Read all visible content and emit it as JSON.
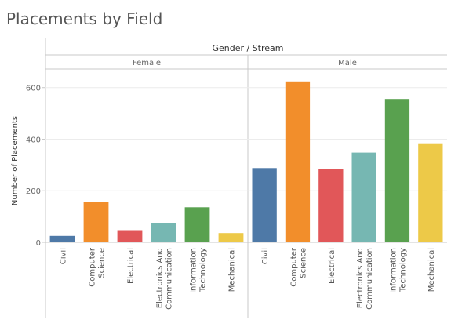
{
  "page": {
    "title": "Placements by Field"
  },
  "chart_data": {
    "type": "bar",
    "title": "Placements by Field",
    "column_header": "Gender / Stream",
    "ylabel": "Number of Placements",
    "ylim": [
      0,
      660
    ],
    "yticks": [
      0,
      200,
      400,
      600
    ],
    "grid": true,
    "categories": [
      "Civil",
      "Computer Science",
      "Electrical",
      "Electronics And Communication",
      "Information Technology",
      "Mechanical"
    ],
    "category_lines": [
      [
        "Civil"
      ],
      [
        "Computer",
        "Science"
      ],
      [
        "Electrical"
      ],
      [
        "Electronics And",
        "Communication"
      ],
      [
        "Information",
        "Technology"
      ],
      [
        "Mechanical"
      ]
    ],
    "colors": [
      "#4e79a7",
      "#f28e2b",
      "#e15759",
      "#76b7b2",
      "#59a14f",
      "#edc948"
    ],
    "series": [
      {
        "name": "Female",
        "values": [
          25,
          157,
          47,
          74,
          136,
          36
        ]
      },
      {
        "name": "Male",
        "values": [
          288,
          624,
          285,
          348,
          556,
          384
        ]
      }
    ]
  }
}
